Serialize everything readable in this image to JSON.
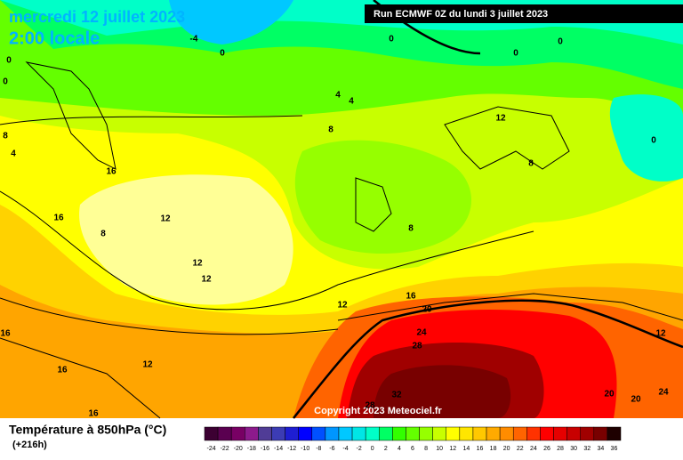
{
  "header": {
    "date": "mercredi 12 juillet 2023",
    "time": "2:00 locale",
    "run": "Run ECMWF 0Z du lundi 3 juillet 2023"
  },
  "copyright": "Copyright 2023 Meteociel.fr",
  "legend": {
    "title": "Température à 850hPa (°C)",
    "subtitle": "(+216h)",
    "ticks": [
      -24,
      -22,
      -20,
      -18,
      -16,
      -14,
      -12,
      -10,
      -8,
      -6,
      -4,
      -2,
      0,
      2,
      4,
      6,
      8,
      10,
      12,
      14,
      16,
      18,
      20,
      22,
      24,
      26,
      28,
      30,
      32,
      34,
      36
    ],
    "colors": [
      "#3c0032",
      "#5a0050",
      "#780064",
      "#8c1a8c",
      "#503c96",
      "#3c3cb4",
      "#1e1ed2",
      "#0000ff",
      "#0050ff",
      "#0096ff",
      "#00c8ff",
      "#00e6e6",
      "#00ffc8",
      "#00ff64",
      "#32ff00",
      "#64ff00",
      "#96ff00",
      "#c8ff00",
      "#ffff00",
      "#ffe600",
      "#ffc800",
      "#ffaa00",
      "#ff8c00",
      "#ff6400",
      "#ff3200",
      "#ff0000",
      "#e60000",
      "#c80000",
      "#a00000",
      "#780000",
      "#1e0000"
    ]
  },
  "contours": {
    "labels": [
      "-4",
      "0",
      "0",
      "0",
      "0",
      "0",
      "0",
      "4",
      "4",
      "4",
      "8",
      "8",
      "12",
      "8",
      "0",
      "16",
      "16",
      "12",
      "8",
      "12",
      "12",
      "8",
      "16",
      "12",
      "20",
      "24",
      "28",
      "12",
      "16",
      "16",
      "12",
      "32",
      "28",
      "20",
      "20",
      "24",
      "16"
    ]
  }
}
